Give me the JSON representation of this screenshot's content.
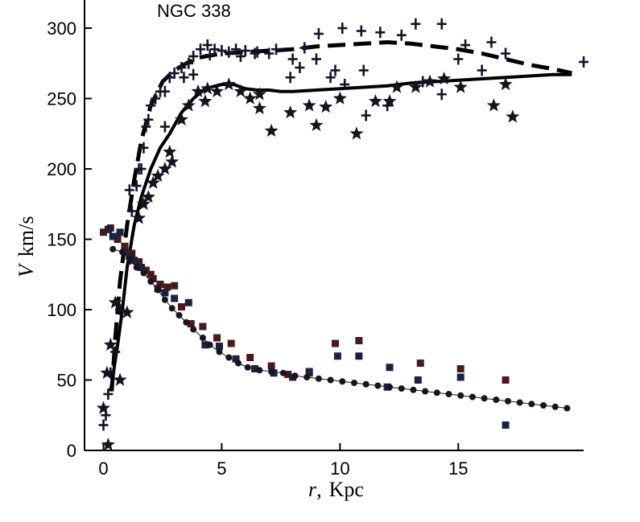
{
  "chart_data": {
    "type": "scatter",
    "title": "NGC 338",
    "xlabel": {
      "var": "r",
      "sep": ",",
      "unit": "Kpc"
    },
    "ylabel": {
      "var": "V",
      "unit": "km/s"
    },
    "xlim": [
      -0.8,
      20.3
    ],
    "ylim": [
      0,
      320
    ],
    "x_ticks": [
      0,
      5,
      10,
      15
    ],
    "y_ticks": [
      0,
      50,
      100,
      150,
      200,
      250,
      300
    ],
    "colors": {
      "cross": "#141428",
      "star": "#14141e",
      "sq_red": "#4a1a1a",
      "sq_navy": "#1a2240",
      "dot": "#1a1420",
      "curve": "#000000"
    },
    "series": [
      {
        "name": "rotation-crosses",
        "marker": "+",
        "points": [
          [
            0.0,
            18
          ],
          [
            0.1,
            25
          ],
          [
            0.2,
            40
          ],
          [
            0.3,
            55
          ],
          [
            0.5,
            70
          ],
          [
            0.7,
            100
          ],
          [
            1.0,
            140
          ],
          [
            1.2,
            170
          ],
          [
            1.4,
            188
          ],
          [
            1.5,
            200
          ],
          [
            1.7,
            215
          ],
          [
            1.8,
            230
          ],
          [
            2.0,
            245
          ],
          [
            2.2,
            250
          ],
          [
            2.4,
            255
          ],
          [
            2.6,
            255
          ],
          [
            2.8,
            265
          ],
          [
            3.0,
            268
          ],
          [
            3.3,
            272
          ],
          [
            3.6,
            275
          ],
          [
            3.8,
            280
          ],
          [
            4.1,
            285
          ],
          [
            4.4,
            288
          ],
          [
            4.7,
            285
          ],
          [
            5.0,
            284
          ],
          [
            5.3,
            283
          ],
          [
            5.6,
            285
          ],
          [
            6.0,
            284
          ],
          [
            6.5,
            283
          ],
          [
            7.3,
            285
          ],
          [
            8.0,
            278
          ],
          [
            8.5,
            286
          ],
          [
            9.1,
            296
          ],
          [
            9.6,
            265
          ],
          [
            10.1,
            300
          ],
          [
            10.9,
            298
          ],
          [
            11.7,
            297
          ],
          [
            12.6,
            295
          ],
          [
            13.2,
            303
          ],
          [
            14.3,
            303
          ],
          [
            15.3,
            288
          ],
          [
            16.4,
            290
          ],
          [
            17.0,
            282
          ],
          [
            20.3,
            276
          ],
          [
            3.8,
            267
          ],
          [
            7.9,
            265
          ],
          [
            10.2,
            260
          ],
          [
            12.0,
            245
          ],
          [
            8.3,
            272
          ],
          [
            9.8,
            270
          ],
          [
            11.1,
            238
          ],
          [
            14.3,
            253
          ],
          [
            2.6,
            230
          ],
          [
            1.6,
            200
          ],
          [
            1.1,
            185
          ],
          [
            1.9,
            235
          ],
          [
            6.4,
            282
          ],
          [
            5.8,
            280
          ],
          [
            7.0,
            282
          ],
          [
            9.0,
            278
          ],
          [
            11.0,
            270
          ],
          [
            15.0,
            278
          ],
          [
            16.0,
            270
          ],
          [
            13.5,
            262
          ],
          [
            4.5,
            281
          ],
          [
            3.4,
            265
          ]
        ]
      },
      {
        "name": "rotation-stars",
        "marker": "star",
        "points": [
          [
            0.0,
            30
          ],
          [
            0.15,
            55
          ],
          [
            0.3,
            75
          ],
          [
            0.5,
            105
          ],
          [
            0.7,
            50
          ],
          [
            1.0,
            98
          ],
          [
            1.2,
            135
          ],
          [
            1.5,
            165
          ],
          [
            1.7,
            175
          ],
          [
            1.9,
            180
          ],
          [
            2.1,
            190
          ],
          [
            2.3,
            195
          ],
          [
            2.6,
            200
          ],
          [
            2.8,
            212
          ],
          [
            3.3,
            235
          ],
          [
            3.6,
            245
          ],
          [
            4.0,
            255
          ],
          [
            4.4,
            257
          ],
          [
            4.8,
            255
          ],
          [
            5.3,
            260
          ],
          [
            5.8,
            255
          ],
          [
            6.2,
            250
          ],
          [
            6.6,
            243
          ],
          [
            7.1,
            227
          ],
          [
            7.9,
            240
          ],
          [
            8.7,
            245
          ],
          [
            9.4,
            244
          ],
          [
            10.0,
            250
          ],
          [
            10.7,
            225
          ],
          [
            11.5,
            248
          ],
          [
            12.4,
            258
          ],
          [
            13.2,
            258
          ],
          [
            13.8,
            262
          ],
          [
            14.4,
            264
          ],
          [
            15.1,
            258
          ],
          [
            16.5,
            245
          ],
          [
            17.0,
            260
          ],
          [
            17.3,
            237
          ],
          [
            12.1,
            248
          ],
          [
            9.0,
            231
          ],
          [
            6.6,
            253
          ],
          [
            4.3,
            248
          ],
          [
            2.9,
            205
          ],
          [
            0.2,
            4
          ]
        ]
      },
      {
        "name": "density-squares-red",
        "marker": "square",
        "color": "sq_red",
        "points": [
          [
            0.0,
            155
          ],
          [
            0.3,
            158
          ],
          [
            0.6,
            150
          ],
          [
            0.9,
            145
          ],
          [
            1.2,
            140
          ],
          [
            1.5,
            134
          ],
          [
            1.8,
            128
          ],
          [
            2.1,
            122
          ],
          [
            2.4,
            118
          ],
          [
            2.7,
            116
          ],
          [
            3.0,
            117
          ],
          [
            3.3,
            102
          ],
          [
            3.7,
            90
          ],
          [
            4.2,
            88
          ],
          [
            4.8,
            80
          ],
          [
            5.4,
            76
          ],
          [
            6.2,
            66
          ],
          [
            7.1,
            60
          ],
          [
            7.8,
            54
          ],
          [
            8.7,
            55
          ],
          [
            9.8,
            76
          ],
          [
            10.8,
            78
          ],
          [
            13.4,
            62
          ],
          [
            15.1,
            58
          ],
          [
            17.0,
            50
          ],
          [
            1.1,
            138
          ],
          [
            2.0,
            125
          ]
        ]
      },
      {
        "name": "density-squares-navy",
        "marker": "square",
        "color": "sq_navy",
        "points": [
          [
            0.2,
            157
          ],
          [
            0.7,
            155
          ],
          [
            1.1,
            138
          ],
          [
            1.6,
            130
          ],
          [
            2.3,
            115
          ],
          [
            3.0,
            108
          ],
          [
            3.6,
            105
          ],
          [
            4.3,
            75
          ],
          [
            4.9,
            74
          ],
          [
            5.6,
            65
          ],
          [
            6.4,
            58
          ],
          [
            7.2,
            55
          ],
          [
            8.0,
            52
          ],
          [
            8.7,
            56
          ],
          [
            9.9,
            67
          ],
          [
            10.8,
            67
          ],
          [
            12.1,
            59
          ],
          [
            13.3,
            50
          ],
          [
            15.1,
            52
          ],
          [
            17.0,
            18
          ],
          [
            0.4,
            152
          ],
          [
            1.3,
            135
          ],
          [
            2.6,
            112
          ],
          [
            12.0,
            45
          ]
        ]
      },
      {
        "name": "density-dots",
        "marker": "dot",
        "points": [
          [
            0.4,
            143
          ],
          [
            0.8,
            141
          ],
          [
            1.1,
            136
          ],
          [
            1.4,
            130
          ],
          [
            1.7,
            126
          ],
          [
            2.0,
            120
          ],
          [
            2.3,
            114
          ],
          [
            2.6,
            107
          ],
          [
            2.9,
            101
          ],
          [
            3.2,
            96
          ],
          [
            3.5,
            91
          ],
          [
            3.8,
            86
          ],
          [
            4.2,
            80
          ],
          [
            4.5,
            75
          ],
          [
            4.9,
            70
          ],
          [
            5.3,
            66
          ],
          [
            5.7,
            62
          ],
          [
            6.1,
            59
          ],
          [
            6.6,
            57
          ],
          [
            7.1,
            56
          ],
          [
            7.6,
            55
          ],
          [
            8.1,
            53
          ],
          [
            8.6,
            52
          ],
          [
            9.1,
            51
          ],
          [
            9.6,
            50
          ],
          [
            10.1,
            49
          ],
          [
            10.6,
            48
          ],
          [
            11.1,
            47
          ],
          [
            11.6,
            46
          ],
          [
            12.1,
            45
          ],
          [
            12.6,
            44
          ],
          [
            13.1,
            43
          ],
          [
            13.6,
            42
          ],
          [
            14.1,
            41
          ],
          [
            14.6,
            40
          ],
          [
            15.1,
            39
          ],
          [
            15.6,
            38
          ],
          [
            16.1,
            37
          ],
          [
            16.6,
            36
          ],
          [
            17.1,
            35
          ],
          [
            17.6,
            34
          ],
          [
            18.1,
            33
          ],
          [
            18.6,
            32
          ],
          [
            19.1,
            31
          ],
          [
            19.6,
            30
          ]
        ]
      }
    ],
    "curves": [
      {
        "name": "model-dashed",
        "style": "dashed",
        "points": [
          [
            0.35,
            42
          ],
          [
            0.5,
            80
          ],
          [
            0.7,
            120
          ],
          [
            1.0,
            160
          ],
          [
            1.3,
            192
          ],
          [
            1.6,
            220
          ],
          [
            2.0,
            245
          ],
          [
            2.5,
            262
          ],
          [
            3.0,
            270
          ],
          [
            3.5,
            275
          ],
          [
            4.0,
            279
          ],
          [
            5.0,
            282
          ],
          [
            6.0,
            283
          ],
          [
            7.0,
            284
          ],
          [
            8.0,
            285
          ],
          [
            9.0,
            287
          ],
          [
            10.0,
            288
          ],
          [
            11.0,
            289
          ],
          [
            12.0,
            290
          ],
          [
            13.0,
            289
          ],
          [
            14.0,
            287
          ],
          [
            15.0,
            285
          ],
          [
            16.0,
            282
          ],
          [
            17.0,
            278
          ],
          [
            18.0,
            274
          ],
          [
            19.0,
            271
          ],
          [
            19.8,
            268
          ]
        ]
      },
      {
        "name": "model-solid",
        "style": "solid",
        "points": [
          [
            0.3,
            42
          ],
          [
            0.6,
            75
          ],
          [
            0.8,
            100
          ],
          [
            1.0,
            130
          ],
          [
            1.3,
            160
          ],
          [
            1.6,
            180
          ],
          [
            2.0,
            200
          ],
          [
            2.4,
            215
          ],
          [
            2.8,
            225
          ],
          [
            3.3,
            240
          ],
          [
            3.8,
            250
          ],
          [
            4.3,
            257
          ],
          [
            5.0,
            260
          ],
          [
            5.5,
            260
          ],
          [
            6.0,
            257
          ],
          [
            6.5,
            256
          ],
          [
            7.0,
            256
          ],
          [
            7.5,
            255
          ],
          [
            8.0,
            255
          ],
          [
            9.0,
            256
          ],
          [
            10.0,
            257
          ],
          [
            11.0,
            258
          ],
          [
            12.0,
            259
          ],
          [
            13.0,
            261
          ],
          [
            14.0,
            262
          ],
          [
            15.0,
            263
          ],
          [
            16.0,
            264
          ],
          [
            17.0,
            265
          ],
          [
            18.0,
            266
          ],
          [
            19.0,
            267
          ],
          [
            19.8,
            267
          ]
        ]
      }
    ]
  }
}
